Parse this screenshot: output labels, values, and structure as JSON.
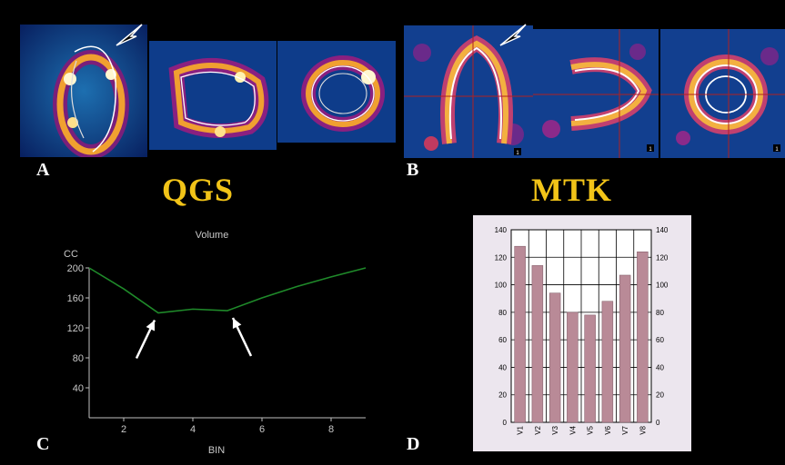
{
  "figure": {
    "panels": {
      "a": "A",
      "b": "B",
      "c": "C",
      "d": "D"
    },
    "methods": {
      "left": "QGS",
      "right": "MTK"
    },
    "mtk_frame_markers": [
      "1",
      "1",
      "1"
    ]
  },
  "colors": {
    "background": "#000000",
    "title_yellow": "#f2c418",
    "curve_green": "#1f8a2a",
    "bar_fill": "#b98a97",
    "bar_panel_bg": "#ece6ee"
  },
  "chart_data": [
    {
      "type": "line",
      "title": "Volume",
      "xlabel": "BIN",
      "ylabel": "CC",
      "x": [
        1,
        2,
        3,
        4,
        5,
        6,
        7,
        8,
        9
      ],
      "series": [
        {
          "values": [
            200,
            172,
            140,
            145,
            143,
            160,
            175,
            188,
            200
          ]
        }
      ],
      "xticks": [
        "2",
        "4",
        "6",
        "8"
      ],
      "yticks": [
        "40",
        "80",
        "120",
        "160",
        "200"
      ],
      "xlim": [
        1,
        9
      ],
      "ylim": [
        0,
        200
      ],
      "annotations": [
        "arrow at bin 3",
        "arrow at bin 5"
      ]
    },
    {
      "type": "bar",
      "categories": [
        "V1",
        "V2",
        "V3",
        "V4",
        "V5",
        "V6",
        "V7",
        "V8"
      ],
      "values": [
        128,
        114,
        94,
        80,
        78,
        88,
        107,
        124
      ],
      "ylim": [
        0,
        140
      ],
      "yticks": [
        "0",
        "20",
        "40",
        "60",
        "80",
        "100",
        "120",
        "140"
      ],
      "secondary_yticks": [
        "0",
        "20",
        "40",
        "60",
        "80",
        "100",
        "120",
        "140"
      ],
      "grid": true
    }
  ]
}
